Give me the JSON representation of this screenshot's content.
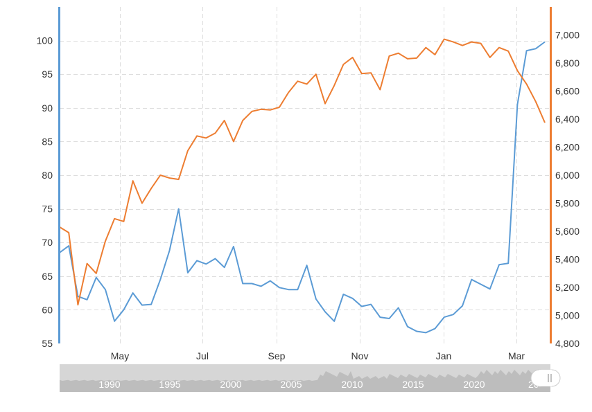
{
  "chart_data": {
    "type": "line",
    "x_tick_labels": [
      "May",
      "Jul",
      "Sep",
      "Nov",
      "Jan",
      "Mar"
    ],
    "y_left": {
      "ylim": [
        55,
        105
      ],
      "ticks": [
        55,
        60,
        65,
        70,
        75,
        80,
        85,
        90,
        95,
        100
      ]
    },
    "y_right": {
      "ylim": [
        4800,
        7200
      ],
      "ticks": [
        "4,800",
        "5,000",
        "5,200",
        "5,400",
        "5,600",
        "5,800",
        "6,000",
        "6,200",
        "6,400",
        "6,600",
        "6,800",
        "7,000"
      ]
    },
    "grid": true,
    "series": [
      {
        "axis": "left",
        "color": "#5b9bd5",
        "values": [
          68.5,
          69.5,
          62.0,
          61.5,
          64.8,
          63.0,
          58.3,
          60.0,
          62.5,
          60.7,
          60.8,
          64.5,
          68.8,
          75.0,
          65.5,
          67.3,
          66.8,
          67.6,
          66.3,
          69.4,
          63.9,
          63.9,
          63.5,
          64.3,
          63.3,
          63.0,
          63.0,
          66.6,
          61.6,
          59.7,
          58.3,
          62.3,
          61.7,
          60.5,
          60.8,
          58.9,
          58.7,
          60.3,
          57.5,
          56.8,
          56.6,
          57.2,
          58.9,
          59.3,
          60.6,
          64.5,
          63.8,
          63.1,
          66.7,
          66.9,
          90.5,
          98.5,
          98.8,
          99.8
        ]
      },
      {
        "axis": "right",
        "color": "#ed7d31",
        "values": [
          5630,
          5590,
          5075,
          5370,
          5300,
          5530,
          5690,
          5670,
          5960,
          5800,
          5905,
          6000,
          5980,
          5970,
          6175,
          6280,
          6265,
          6300,
          6390,
          6240,
          6390,
          6455,
          6470,
          6465,
          6485,
          6590,
          6670,
          6650,
          6720,
          6510,
          6640,
          6790,
          6840,
          6725,
          6730,
          6610,
          6850,
          6870,
          6830,
          6835,
          6910,
          6860,
          6970,
          6950,
          6925,
          6950,
          6940,
          6840,
          6910,
          6885,
          6745,
          6650,
          6525,
          6375
        ]
      }
    ]
  },
  "navigator": {
    "year_labels": [
      "1990",
      "1995",
      "2000",
      "2005",
      "2010",
      "2015",
      "2020"
    ],
    "partial_label": "20"
  }
}
